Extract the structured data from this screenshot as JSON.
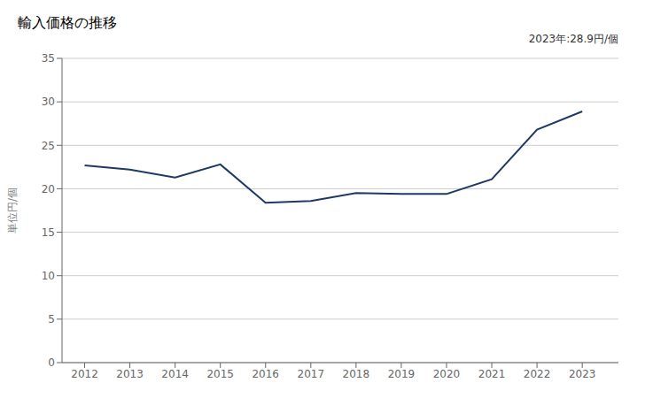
{
  "chart_data": {
    "type": "line",
    "title": "輸入価格の推移",
    "ylabel": "単位円/個",
    "annotation": "2023年:28.9円/個",
    "x": [
      2012,
      2013,
      2014,
      2015,
      2016,
      2017,
      2018,
      2019,
      2020,
      2021,
      2022,
      2023
    ],
    "values": [
      22.7,
      22.2,
      21.3,
      22.8,
      18.4,
      18.6,
      19.5,
      19.4,
      19.4,
      21.1,
      26.8,
      28.9
    ],
    "color": "#1f3864",
    "xlim": [
      2011.5,
      2023.8
    ],
    "xticks": [
      2012,
      2013,
      2014,
      2015,
      2016,
      2017,
      2018,
      2019,
      2020,
      2021,
      2022,
      2023
    ],
    "ylim": [
      0,
      35
    ],
    "yticks": [
      0,
      5,
      10,
      15,
      20,
      25,
      30,
      35
    ],
    "grid": true
  }
}
